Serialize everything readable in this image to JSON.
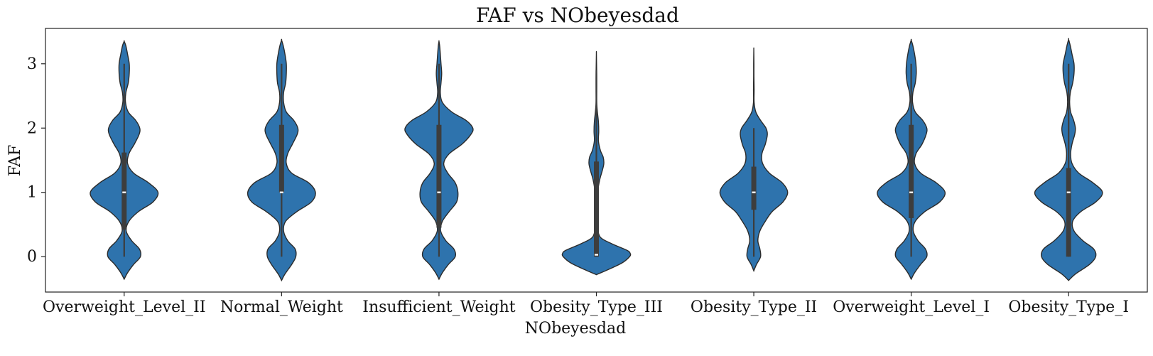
{
  "chart_data": {
    "type": "violin",
    "title": "FAF vs NObeyesdad",
    "xlabel": "NObeyesdad",
    "ylabel": "FAF",
    "ylim": [
      -0.55,
      3.55
    ],
    "yticks": [
      0,
      1,
      2,
      3
    ],
    "ytick_labels": [
      "0",
      "1",
      "2",
      "3"
    ],
    "grid": false,
    "color": "#2e73ad",
    "categories": [
      "Overweight_Level_II",
      "Normal_Weight",
      "Insufficient_Weight",
      "Obesity_Type_III",
      "Obesity_Type_II",
      "Overweight_Level_I",
      "Obesity_Type_I"
    ],
    "distributions": [
      {
        "category": "Overweight_Level_II",
        "min": 0.0,
        "q1": 0.42,
        "median": 1.0,
        "q3": 1.62,
        "max": 3.0,
        "extent": [
          -0.35,
          3.35
        ],
        "density": [
          [
            -0.35,
            0.0
          ],
          [
            -0.25,
            0.1
          ],
          [
            -0.12,
            0.28
          ],
          [
            0.0,
            0.48
          ],
          [
            0.12,
            0.45
          ],
          [
            0.25,
            0.22
          ],
          [
            0.4,
            0.06
          ],
          [
            0.55,
            0.14
          ],
          [
            0.7,
            0.42
          ],
          [
            0.85,
            0.85
          ],
          [
            1.0,
            1.0
          ],
          [
            1.15,
            0.72
          ],
          [
            1.3,
            0.28
          ],
          [
            1.45,
            0.1
          ],
          [
            1.6,
            0.14
          ],
          [
            1.75,
            0.3
          ],
          [
            1.9,
            0.44
          ],
          [
            2.0,
            0.46
          ],
          [
            2.12,
            0.34
          ],
          [
            2.25,
            0.12
          ],
          [
            2.4,
            0.04
          ],
          [
            2.55,
            0.05
          ],
          [
            2.7,
            0.12
          ],
          [
            2.85,
            0.15
          ],
          [
            3.0,
            0.15
          ],
          [
            3.15,
            0.1
          ],
          [
            3.28,
            0.05
          ],
          [
            3.35,
            0.0
          ]
        ]
      },
      {
        "category": "Normal_Weight",
        "min": 0.0,
        "q1": 1.0,
        "median": 1.0,
        "q3": 2.05,
        "max": 3.0,
        "extent": [
          -0.37,
          3.37
        ],
        "density": [
          [
            -0.37,
            0.0
          ],
          [
            -0.27,
            0.1
          ],
          [
            -0.12,
            0.3
          ],
          [
            0.0,
            0.42
          ],
          [
            0.12,
            0.4
          ],
          [
            0.25,
            0.18
          ],
          [
            0.4,
            0.06
          ],
          [
            0.55,
            0.12
          ],
          [
            0.7,
            0.45
          ],
          [
            0.85,
            0.88
          ],
          [
            1.0,
            1.0
          ],
          [
            1.15,
            0.8
          ],
          [
            1.3,
            0.3
          ],
          [
            1.45,
            0.14
          ],
          [
            1.6,
            0.18
          ],
          [
            1.75,
            0.32
          ],
          [
            1.9,
            0.46
          ],
          [
            2.0,
            0.48
          ],
          [
            2.12,
            0.36
          ],
          [
            2.25,
            0.14
          ],
          [
            2.4,
            0.06
          ],
          [
            2.55,
            0.06
          ],
          [
            2.7,
            0.12
          ],
          [
            2.85,
            0.14
          ],
          [
            3.0,
            0.14
          ],
          [
            3.15,
            0.1
          ],
          [
            3.28,
            0.05
          ],
          [
            3.37,
            0.0
          ]
        ]
      },
      {
        "category": "Insufficient_Weight",
        "min": 0.0,
        "q1": 0.45,
        "median": 1.0,
        "q3": 2.05,
        "max": 3.0,
        "extent": [
          -0.35,
          3.35
        ],
        "density": [
          [
            -0.35,
            0.0
          ],
          [
            -0.25,
            0.1
          ],
          [
            -0.12,
            0.28
          ],
          [
            0.0,
            0.48
          ],
          [
            0.12,
            0.44
          ],
          [
            0.25,
            0.2
          ],
          [
            0.4,
            0.05
          ],
          [
            0.55,
            0.1
          ],
          [
            0.7,
            0.3
          ],
          [
            0.85,
            0.52
          ],
          [
            1.0,
            0.56
          ],
          [
            1.15,
            0.48
          ],
          [
            1.3,
            0.26
          ],
          [
            1.45,
            0.14
          ],
          [
            1.6,
            0.3
          ],
          [
            1.75,
            0.68
          ],
          [
            1.9,
            0.94
          ],
          [
            2.0,
            1.0
          ],
          [
            2.12,
            0.8
          ],
          [
            2.25,
            0.38
          ],
          [
            2.4,
            0.1
          ],
          [
            2.55,
            0.04
          ],
          [
            2.7,
            0.06
          ],
          [
            2.85,
            0.08
          ],
          [
            3.0,
            0.06
          ],
          [
            3.15,
            0.04
          ],
          [
            3.28,
            0.02
          ],
          [
            3.35,
            0.0
          ]
        ]
      },
      {
        "category": "Obesity_Type_III",
        "min": 0.0,
        "q1": 0.0,
        "median": 0.03,
        "q3": 1.48,
        "max": 2.9,
        "extent": [
          -0.28,
          3.17
        ],
        "density": [
          [
            -0.28,
            0.0
          ],
          [
            -0.2,
            0.35
          ],
          [
            -0.1,
            0.75
          ],
          [
            0.0,
            0.98
          ],
          [
            0.05,
            1.0
          ],
          [
            0.1,
            0.9
          ],
          [
            0.2,
            0.46
          ],
          [
            0.3,
            0.12
          ],
          [
            0.45,
            0.04
          ],
          [
            0.6,
            0.03
          ],
          [
            0.75,
            0.03
          ],
          [
            0.9,
            0.04
          ],
          [
            1.05,
            0.05
          ],
          [
            1.2,
            0.1
          ],
          [
            1.35,
            0.18
          ],
          [
            1.45,
            0.22
          ],
          [
            1.55,
            0.2
          ],
          [
            1.65,
            0.12
          ],
          [
            1.8,
            0.06
          ],
          [
            1.95,
            0.07
          ],
          [
            2.1,
            0.06
          ],
          [
            2.25,
            0.03
          ],
          [
            2.4,
            0.01
          ],
          [
            2.6,
            0.01
          ],
          [
            2.8,
            0.01
          ],
          [
            3.0,
            0.005
          ],
          [
            3.17,
            0.0
          ]
        ]
      },
      {
        "category": "Obesity_Type_II",
        "min": 0.0,
        "q1": 0.73,
        "median": 1.0,
        "q3": 1.4,
        "max": 2.0,
        "extent": [
          -0.22,
          3.22
        ],
        "density": [
          [
            -0.22,
            0.0
          ],
          [
            -0.12,
            0.08
          ],
          [
            0.0,
            0.2
          ],
          [
            0.12,
            0.18
          ],
          [
            0.25,
            0.12
          ],
          [
            0.4,
            0.18
          ],
          [
            0.55,
            0.34
          ],
          [
            0.7,
            0.54
          ],
          [
            0.85,
            0.86
          ],
          [
            1.0,
            1.0
          ],
          [
            1.15,
            0.84
          ],
          [
            1.3,
            0.46
          ],
          [
            1.45,
            0.26
          ],
          [
            1.6,
            0.24
          ],
          [
            1.75,
            0.34
          ],
          [
            1.9,
            0.4
          ],
          [
            2.0,
            0.36
          ],
          [
            2.12,
            0.2
          ],
          [
            2.25,
            0.06
          ],
          [
            2.4,
            0.01
          ],
          [
            2.6,
            0.01
          ],
          [
            2.8,
            0.005
          ],
          [
            3.0,
            0.005
          ],
          [
            3.22,
            0.0
          ]
        ]
      },
      {
        "category": "Overweight_Level_I",
        "min": 0.0,
        "q1": 0.6,
        "median": 1.0,
        "q3": 2.05,
        "max": 3.0,
        "extent": [
          -0.35,
          3.37
        ],
        "density": [
          [
            -0.35,
            0.0
          ],
          [
            -0.25,
            0.1
          ],
          [
            -0.12,
            0.28
          ],
          [
            0.0,
            0.46
          ],
          [
            0.12,
            0.42
          ],
          [
            0.25,
            0.2
          ],
          [
            0.4,
            0.06
          ],
          [
            0.55,
            0.12
          ],
          [
            0.7,
            0.4
          ],
          [
            0.85,
            0.84
          ],
          [
            1.0,
            1.0
          ],
          [
            1.15,
            0.74
          ],
          [
            1.3,
            0.28
          ],
          [
            1.45,
            0.1
          ],
          [
            1.6,
            0.14
          ],
          [
            1.75,
            0.32
          ],
          [
            1.9,
            0.44
          ],
          [
            2.0,
            0.46
          ],
          [
            2.12,
            0.34
          ],
          [
            2.25,
            0.12
          ],
          [
            2.4,
            0.04
          ],
          [
            2.55,
            0.05
          ],
          [
            2.7,
            0.12
          ],
          [
            2.85,
            0.15
          ],
          [
            3.0,
            0.14
          ],
          [
            3.15,
            0.1
          ],
          [
            3.28,
            0.05
          ],
          [
            3.37,
            0.0
          ]
        ]
      },
      {
        "category": "Obesity_Type_I",
        "min": 0.0,
        "q1": 0.0,
        "median": 1.0,
        "q3": 1.38,
        "max": 3.0,
        "extent": [
          -0.37,
          3.38
        ],
        "density": [
          [
            -0.37,
            0.0
          ],
          [
            -0.27,
            0.2
          ],
          [
            -0.12,
            0.62
          ],
          [
            0.0,
            0.8
          ],
          [
            0.12,
            0.74
          ],
          [
            0.25,
            0.42
          ],
          [
            0.4,
            0.16
          ],
          [
            0.55,
            0.12
          ],
          [
            0.7,
            0.36
          ],
          [
            0.85,
            0.8
          ],
          [
            1.0,
            1.0
          ],
          [
            1.15,
            0.72
          ],
          [
            1.3,
            0.3
          ],
          [
            1.45,
            0.1
          ],
          [
            1.6,
            0.06
          ],
          [
            1.75,
            0.1
          ],
          [
            1.9,
            0.18
          ],
          [
            2.0,
            0.2
          ],
          [
            2.12,
            0.15
          ],
          [
            2.25,
            0.06
          ],
          [
            2.4,
            0.03
          ],
          [
            2.55,
            0.05
          ],
          [
            2.7,
            0.12
          ],
          [
            2.85,
            0.16
          ],
          [
            3.0,
            0.16
          ],
          [
            3.15,
            0.1
          ],
          [
            3.28,
            0.05
          ],
          [
            3.38,
            0.0
          ]
        ]
      }
    ]
  }
}
